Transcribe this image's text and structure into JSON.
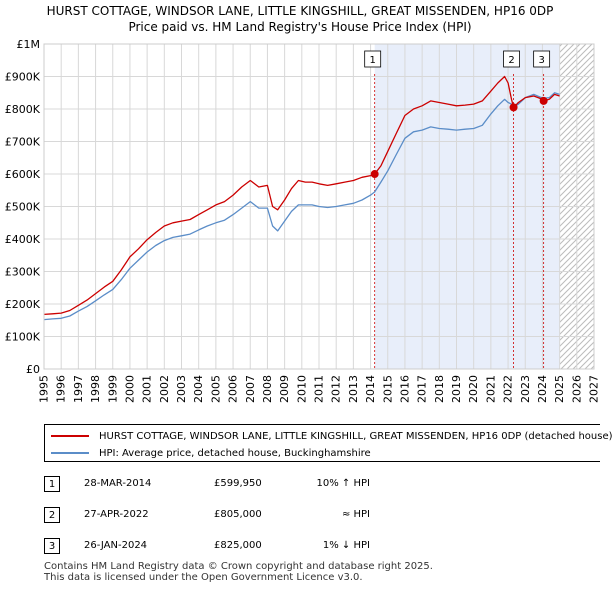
{
  "title_line1": "HURST COTTAGE, WINDSOR LANE, LITTLE KINGSHILL, GREAT MISSENDEN, HP16 0DP",
  "title_line2": "Price paid vs. HM Land Registry's House Price Index (HPI)",
  "chart_data": {
    "type": "line",
    "xlim": [
      1995,
      2027
    ],
    "ylim": [
      0,
      1000000
    ],
    "yticks": [
      0,
      100000,
      200000,
      300000,
      400000,
      500000,
      600000,
      700000,
      800000,
      900000,
      1000000
    ],
    "ytick_labels": [
      "£0",
      "£100K",
      "£200K",
      "£300K",
      "£400K",
      "£500K",
      "£600K",
      "£700K",
      "£800K",
      "£900K",
      "£1M"
    ],
    "xticks": [
      1995,
      1996,
      1997,
      1998,
      1999,
      2000,
      2001,
      2002,
      2003,
      2004,
      2005,
      2006,
      2007,
      2008,
      2009,
      2010,
      2011,
      2012,
      2013,
      2014,
      2015,
      2016,
      2017,
      2018,
      2019,
      2020,
      2021,
      2022,
      2023,
      2024,
      2025,
      2026,
      2027
    ],
    "shaded_region": [
      2014.24,
      2025.0
    ],
    "forecast_start": 2025.0,
    "series": [
      {
        "name": "HURST COTTAGE, WINDSOR LANE, LITTLE KINGSHILL, GREAT MISSENDEN, HP16 0DP (detached house)",
        "color": "#cc0000",
        "x": [
          1995.0,
          1995.5,
          1996.0,
          1996.5,
          1997.0,
          1997.5,
          1998.0,
          1998.5,
          1999.0,
          1999.5,
          2000.0,
          2000.5,
          2001.0,
          2001.5,
          2002.0,
          2002.5,
          2003.0,
          2003.5,
          2004.0,
          2004.5,
          2005.0,
          2005.5,
          2006.0,
          2006.5,
          2007.0,
          2007.5,
          2008.0,
          2008.3,
          2008.6,
          2009.0,
          2009.4,
          2009.8,
          2010.2,
          2010.6,
          2011.0,
          2011.5,
          2012.0,
          2012.5,
          2013.0,
          2013.5,
          2014.0,
          2014.24,
          2014.6,
          2015.0,
          2015.5,
          2016.0,
          2016.5,
          2017.0,
          2017.5,
          2018.0,
          2018.5,
          2019.0,
          2019.5,
          2020.0,
          2020.5,
          2021.0,
          2021.4,
          2021.8,
          2022.0,
          2022.2,
          2022.32,
          2022.6,
          2023.0,
          2023.5,
          2023.9,
          2024.07,
          2024.4,
          2024.7,
          2025.0
        ],
        "values": [
          168000,
          170000,
          172000,
          180000,
          196000,
          212000,
          232000,
          252000,
          270000,
          305000,
          345000,
          370000,
          398000,
          420000,
          440000,
          450000,
          455000,
          460000,
          475000,
          490000,
          505000,
          515000,
          535000,
          560000,
          580000,
          560000,
          565000,
          500000,
          490000,
          520000,
          555000,
          580000,
          575000,
          575000,
          570000,
          565000,
          570000,
          575000,
          580000,
          590000,
          595000,
          599950,
          625000,
          670000,
          725000,
          780000,
          800000,
          810000,
          825000,
          820000,
          815000,
          810000,
          812000,
          815000,
          825000,
          855000,
          880000,
          900000,
          880000,
          830000,
          805000,
          820000,
          835000,
          840000,
          832000,
          825000,
          830000,
          845000,
          840000
        ]
      },
      {
        "name": "HPI: Average price, detached house, Buckinghamshire",
        "color": "#5b8dc8",
        "x": [
          1995.0,
          1995.5,
          1996.0,
          1996.5,
          1997.0,
          1997.5,
          1998.0,
          1998.5,
          1999.0,
          1999.5,
          2000.0,
          2000.5,
          2001.0,
          2001.5,
          2002.0,
          2002.5,
          2003.0,
          2003.5,
          2004.0,
          2004.5,
          2005.0,
          2005.5,
          2006.0,
          2006.5,
          2007.0,
          2007.5,
          2008.0,
          2008.3,
          2008.6,
          2009.0,
          2009.4,
          2009.8,
          2010.2,
          2010.6,
          2011.0,
          2011.5,
          2012.0,
          2012.5,
          2013.0,
          2013.5,
          2014.0,
          2014.24,
          2014.6,
          2015.0,
          2015.5,
          2016.0,
          2016.5,
          2017.0,
          2017.5,
          2018.0,
          2018.5,
          2019.0,
          2019.5,
          2020.0,
          2020.5,
          2021.0,
          2021.4,
          2021.8,
          2022.0,
          2022.2,
          2022.32,
          2022.6,
          2023.0,
          2023.5,
          2023.9,
          2024.07,
          2024.4,
          2024.7,
          2025.0
        ],
        "values": [
          152000,
          154000,
          156000,
          163000,
          178000,
          192000,
          210000,
          228000,
          245000,
          275000,
          310000,
          335000,
          360000,
          380000,
          395000,
          405000,
          410000,
          415000,
          428000,
          440000,
          450000,
          458000,
          475000,
          495000,
          515000,
          495000,
          495000,
          440000,
          425000,
          455000,
          485000,
          505000,
          505000,
          505000,
          500000,
          497000,
          500000,
          505000,
          510000,
          520000,
          535000,
          545000,
          575000,
          610000,
          660000,
          710000,
          730000,
          735000,
          745000,
          740000,
          738000,
          735000,
          738000,
          740000,
          750000,
          785000,
          810000,
          830000,
          820000,
          815000,
          805000,
          815000,
          835000,
          845000,
          836000,
          833000,
          835000,
          850000,
          845000
        ]
      }
    ],
    "sales": [
      {
        "label": "1",
        "x": 2014.24,
        "value": 599950
      },
      {
        "label": "2",
        "x": 2022.32,
        "value": 805000
      },
      {
        "label": "3",
        "x": 2024.07,
        "value": 825000
      }
    ]
  },
  "legend": {
    "property": "HURST COTTAGE, WINDSOR LANE, LITTLE KINGSHILL, GREAT MISSENDEN, HP16 0DP (detached house)",
    "hpi": "HPI: Average price, detached house, Buckinghamshire",
    "property_color": "#cc0000",
    "hpi_color": "#5b8dc8"
  },
  "sales_table": [
    {
      "num": "1",
      "date": "28-MAR-2014",
      "price": "£599,950",
      "hpi": "10% ↑ HPI"
    },
    {
      "num": "2",
      "date": "27-APR-2022",
      "price": "£805,000",
      "hpi": "≈ HPI"
    },
    {
      "num": "3",
      "date": "26-JAN-2024",
      "price": "£825,000",
      "hpi": "1% ↓ HPI"
    }
  ],
  "footer_line1": "Contains HM Land Registry data © Crown copyright and database right 2025.",
  "footer_line2": "This data is licensed under the Open Government Licence v3.0."
}
